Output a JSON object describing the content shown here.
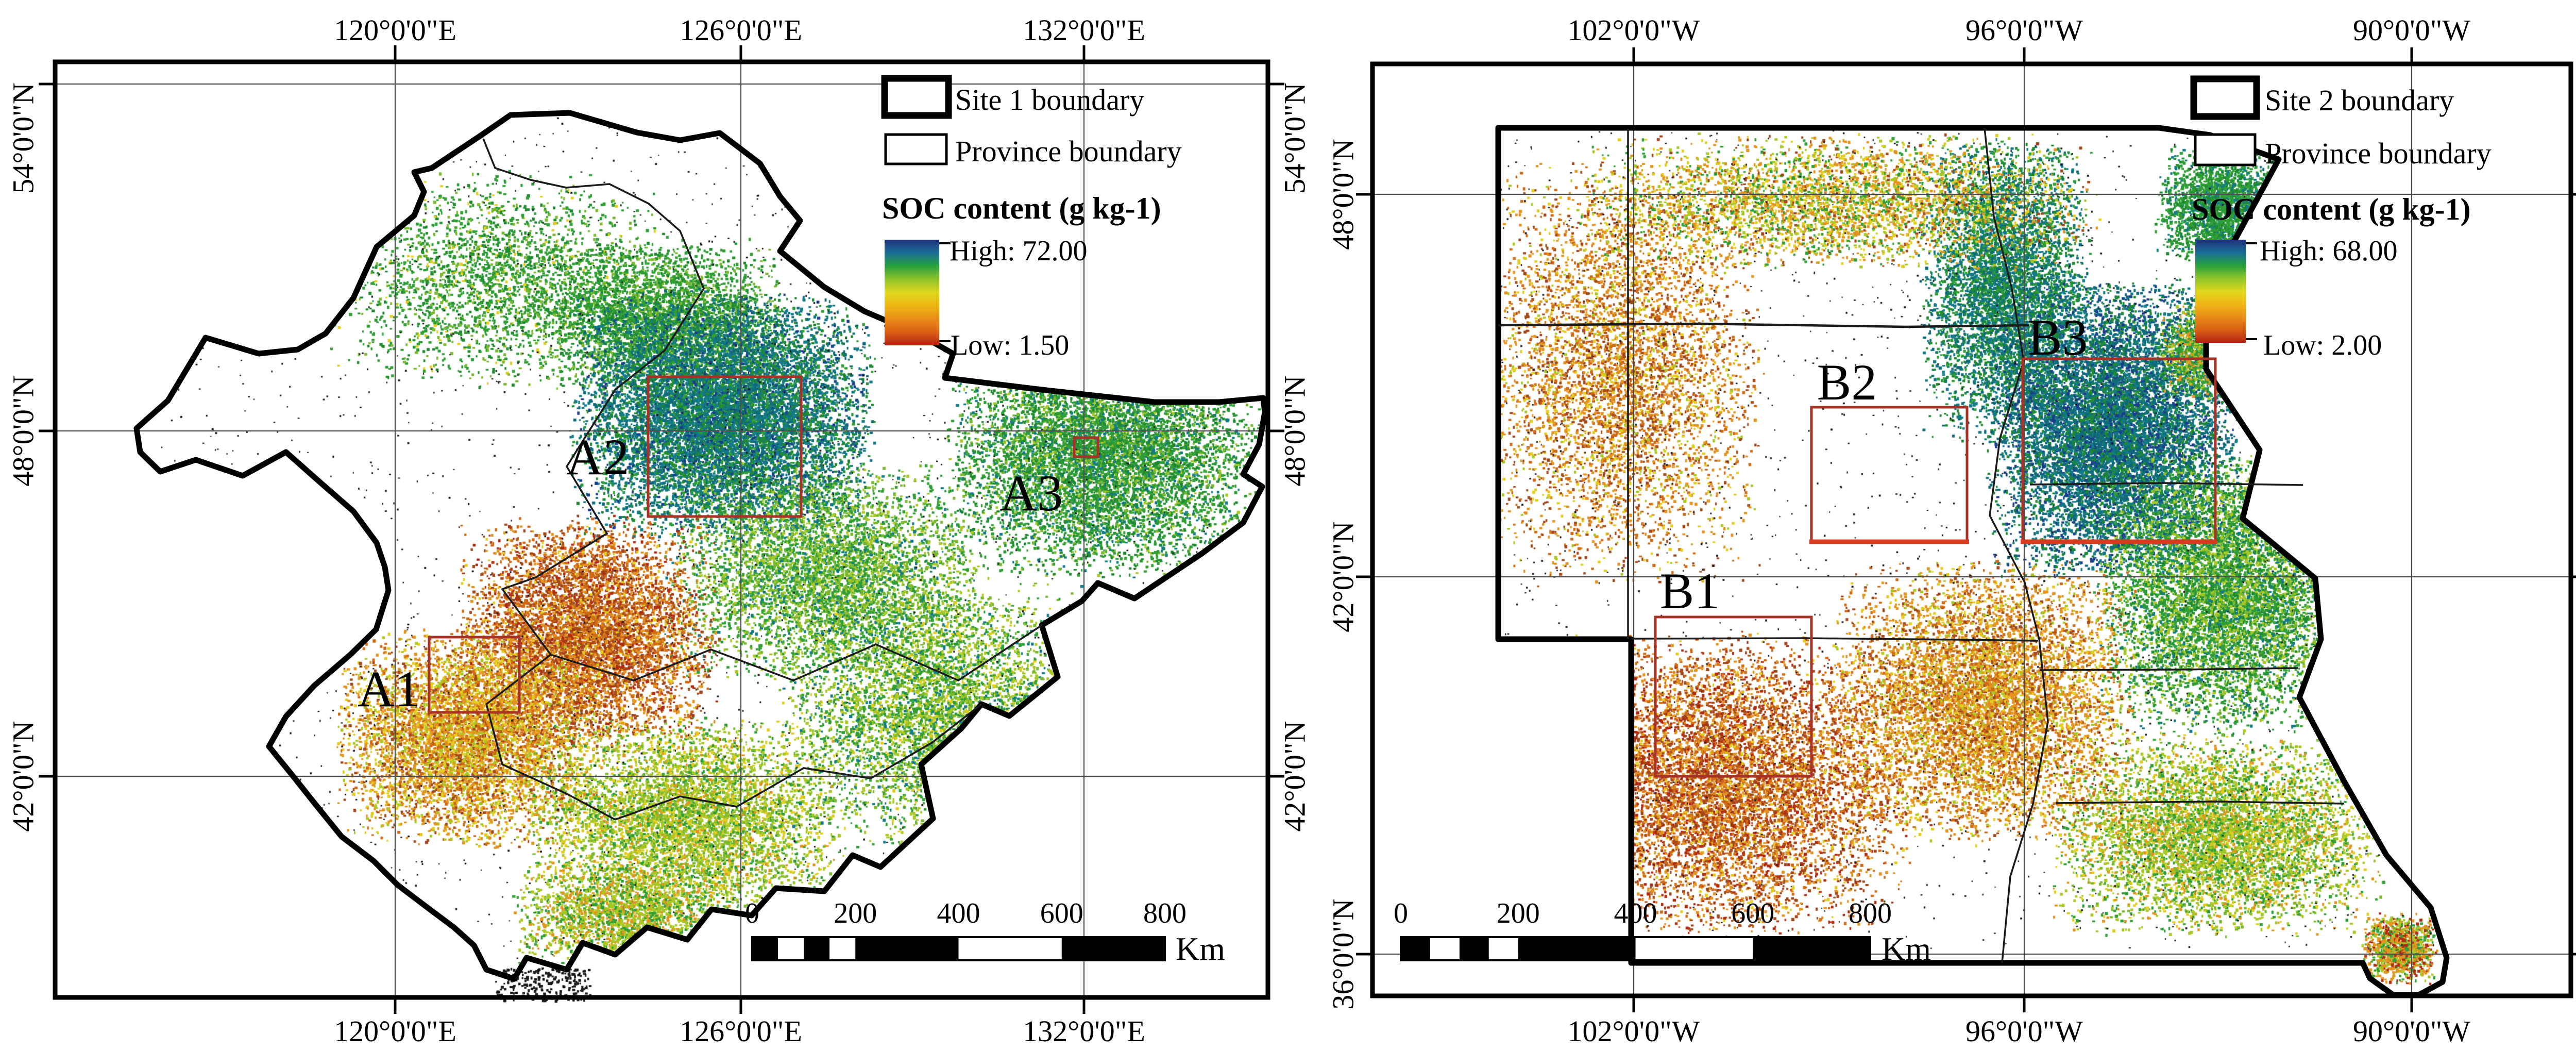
{
  "left_map": {
    "lon_ticks": [
      "120°0'0\"E",
      "126°0'0\"E",
      "132°0'0\"E"
    ],
    "lat_ticks": [
      "54°0'0\"N",
      "48°0'0\"N",
      "42°0'0\"N"
    ],
    "legend": {
      "site": "Site 1 boundary",
      "province": "Province boundary",
      "soc_title": "SOC content (g kg-1)",
      "high": "High: 72.00",
      "low": "Low: 1.50"
    },
    "sample_areas": [
      "A1",
      "A2",
      "A3"
    ],
    "scalebar": {
      "ticks": [
        "0",
        "200",
        "400",
        "600",
        "800"
      ],
      "unit": "Km"
    }
  },
  "right_map": {
    "lon_ticks": [
      "102°0'0\"W",
      "96°0'0\"W",
      "90°0'0\"W"
    ],
    "lat_ticks": [
      "48°0'0\"N",
      "42°0'0\"N",
      "36°0'0\"N"
    ],
    "legend": {
      "site": "Site 2 boundary",
      "province": "Province boundary",
      "soc_title": "SOC content (g kg-1)",
      "high": "High: 68.00",
      "low": "Low: 2.00"
    },
    "sample_areas": [
      "B1",
      "B2",
      "B3"
    ],
    "scalebar": {
      "ticks": [
        "0",
        "200",
        "400",
        "600",
        "800"
      ],
      "unit": "Km"
    }
  },
  "colors": {
    "frame": "#000000",
    "gridline": "#4d4d4d",
    "site_boundary": "#000000",
    "province_boundary": "#1a1a1a",
    "sample_box": "#a93226",
    "sample_box_bright": "#d63b1f",
    "label_text": "#000000",
    "ramp_stops": [
      "#20307d",
      "#1a6e96",
      "#27a13c",
      "#8fc32c",
      "#dfd71d",
      "#efb614",
      "#e88c18",
      "#d95f15",
      "#b22313"
    ],
    "speckle_palette": {
      "db": "#1b3e8c",
      "tl": "#137a87",
      "tl2": "#0e6a78",
      "gn": "#2f9e35",
      "gn2": "#1f8a2f",
      "lg": "#7ab82e",
      "yg": "#a9c824",
      "yl": "#e3cd1d",
      "or": "#e3941f",
      "or2": "#cf6a15",
      "br": "#a1471a",
      "rd": "#b02a10",
      "bk": "#1a1a1a"
    }
  }
}
